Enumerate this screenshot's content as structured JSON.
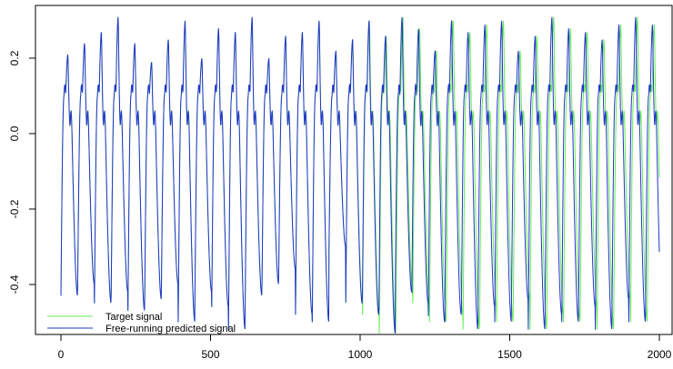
{
  "chart_data": {
    "type": "line",
    "title": "",
    "xlabel": "",
    "ylabel": "",
    "xlim": [
      0,
      2000
    ],
    "ylim": [
      -0.53,
      0.32
    ],
    "x_ticks": [
      0,
      500,
      1000,
      1500,
      2000
    ],
    "x_tick_labels": [
      "0",
      "500",
      "1000",
      "1500",
      "2000"
    ],
    "y_ticks": [
      -0.4,
      -0.2,
      0.0,
      0.2
    ],
    "y_tick_labels": [
      "-0.4",
      "-0.2",
      "0.0",
      "0.2"
    ],
    "grid": false,
    "legend_position": "bottom-left",
    "series": [
      {
        "name": "Target signal",
        "color": "#66ee55",
        "period": 56,
        "trough": -0.43,
        "peaks": [
          0.21,
          0.24,
          0.27,
          0.31,
          0.24,
          0.19,
          0.25,
          0.3,
          0.2,
          0.28,
          0.27,
          0.31,
          0.2,
          0.26,
          0.27,
          0.3,
          0.22,
          0.25,
          0.3,
          0.26,
          0.31,
          0.28,
          0.22,
          0.3,
          0.27,
          0.29,
          0.3,
          0.22,
          0.26,
          0.31,
          0.28,
          0.27,
          0.25,
          0.29,
          0.31,
          0.29
        ],
        "troughs": [
          -0.43,
          -0.4,
          -0.45,
          -0.42,
          -0.47,
          -0.44,
          -0.4,
          -0.5,
          -0.42,
          -0.46,
          -0.52,
          -0.43,
          -0.4,
          -0.36,
          -0.48,
          -0.5,
          -0.3,
          -0.45,
          -0.48,
          -0.53,
          -0.42,
          -0.45,
          -0.5,
          -0.48,
          -0.52,
          -0.46,
          -0.5,
          -0.44,
          -0.52,
          -0.48,
          -0.5,
          -0.46,
          -0.52,
          -0.44,
          -0.5,
          -0.46
        ]
      },
      {
        "name": "Free-running predicted signal",
        "color": "#2233cc",
        "period": 56,
        "trough": -0.43,
        "peaks": [
          0.21,
          0.24,
          0.27,
          0.31,
          0.24,
          0.19,
          0.25,
          0.3,
          0.2,
          0.28,
          0.27,
          0.31,
          0.2,
          0.26,
          0.27,
          0.3,
          0.22,
          0.25,
          0.3,
          0.26,
          0.31,
          0.28,
          0.22,
          0.3,
          0.27,
          0.29,
          0.3,
          0.22,
          0.26,
          0.31,
          0.28,
          0.27,
          0.25,
          0.29,
          0.31,
          0.29
        ],
        "troughs": [
          -0.43,
          -0.4,
          -0.45,
          -0.42,
          -0.47,
          -0.44,
          -0.4,
          -0.5,
          -0.42,
          -0.46,
          -0.52,
          -0.43,
          -0.4,
          -0.36,
          -0.48,
          -0.5,
          -0.3,
          -0.45,
          -0.48,
          -0.53,
          -0.42,
          -0.45,
          -0.5,
          -0.48,
          -0.52,
          -0.46,
          -0.5,
          -0.44,
          -0.52,
          -0.48,
          -0.5,
          -0.46,
          -0.52,
          -0.44,
          -0.5,
          -0.46
        ]
      }
    ]
  }
}
